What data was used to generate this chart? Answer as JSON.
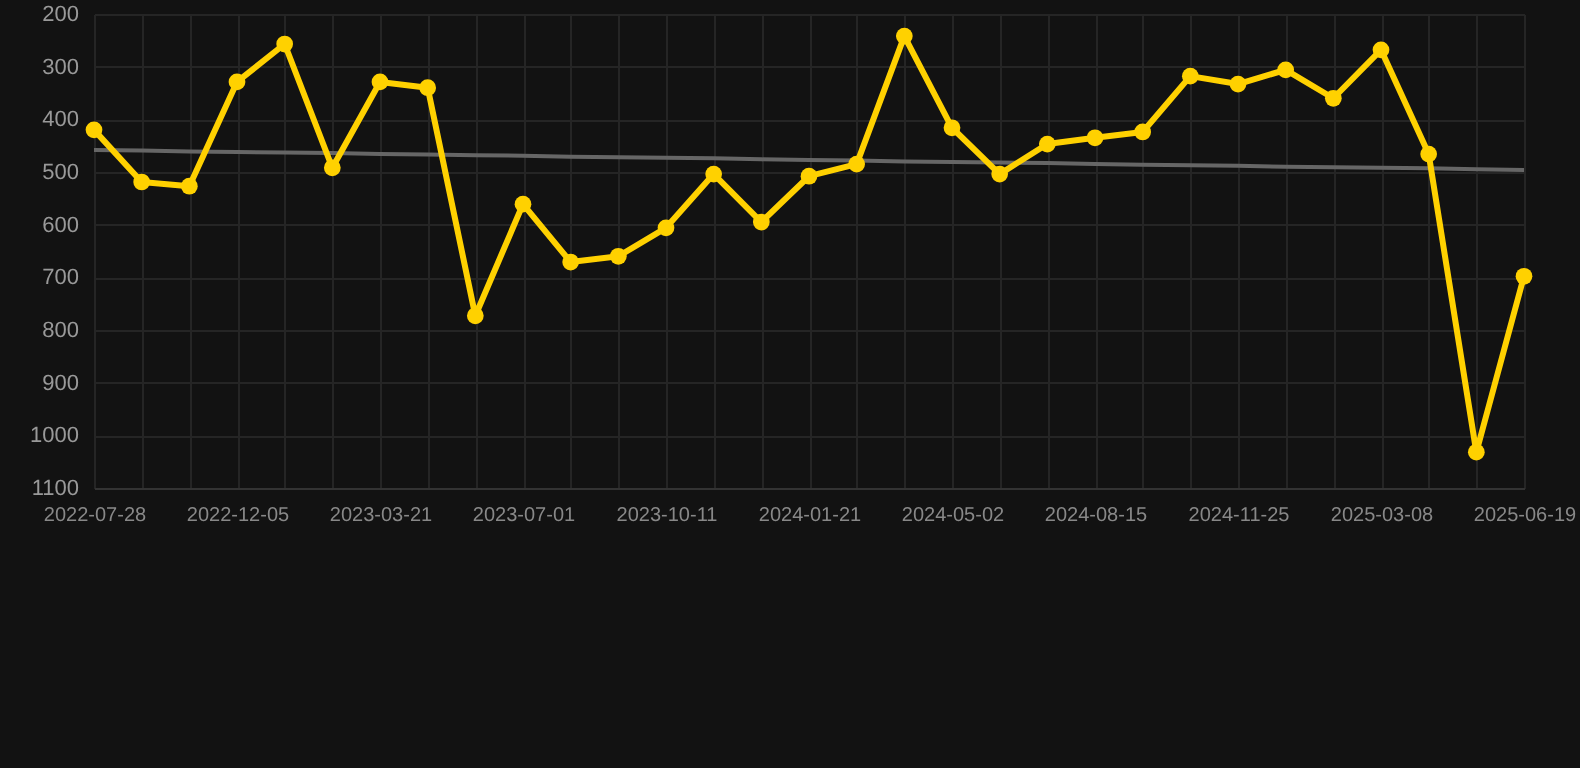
{
  "chart_data": {
    "type": "line",
    "categories": [
      "2022-07-28",
      null,
      null,
      "2022-12-05",
      null,
      null,
      "2023-03-21",
      null,
      null,
      "2023-07-01",
      null,
      null,
      "2023-10-11",
      null,
      null,
      "2024-01-21",
      null,
      null,
      "2024-05-02",
      null,
      null,
      "2024-08-15",
      null,
      null,
      "2024-11-25",
      null,
      null,
      "2025-03-08",
      null,
      null,
      "2025-06-19"
    ],
    "series": [
      {
        "type": "line",
        "color": "#ffd100",
        "marker": "circle",
        "values": [
          420,
          519,
          527,
          329,
          257,
          492,
          329,
          340,
          773,
          561,
          671,
          660,
          606,
          504,
          595,
          508,
          485,
          242,
          416,
          504,
          447,
          435,
          424,
          318,
          333,
          306,
          360,
          268,
          466,
          1032,
          698
        ]
      },
      {
        "type": "line",
        "color": "#666666",
        "marker": "none",
        "values": [
          458,
          459,
          461,
          462,
          463,
          464,
          466,
          467,
          468,
          469,
          471,
          472,
          473,
          474,
          476,
          477,
          478,
          480,
          481,
          482,
          483,
          485,
          486,
          487,
          488,
          490,
          491,
          492,
          493,
          495,
          496
        ]
      }
    ],
    "ylim": [
      1100,
      200
    ],
    "yticks": [
      200,
      300,
      400,
      500,
      600,
      700,
      800,
      900,
      1000,
      1100
    ],
    "grid": true
  }
}
